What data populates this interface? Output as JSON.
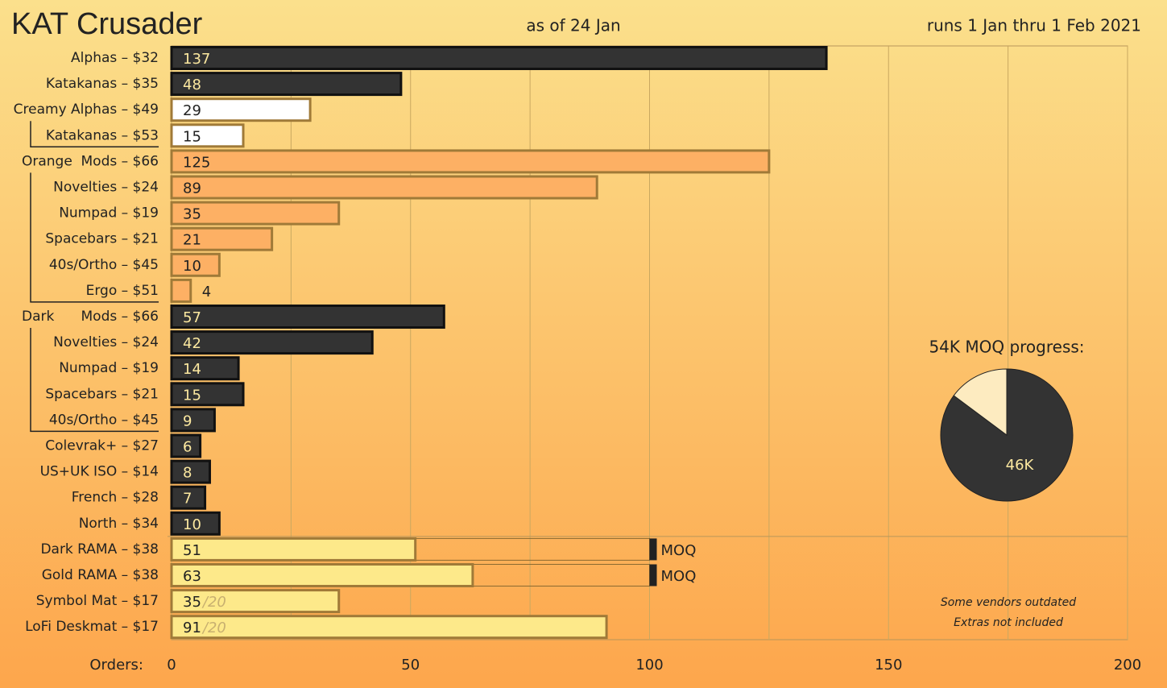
{
  "header": {
    "title": "KAT Crusader",
    "subtitle": "as of 24 Jan",
    "run_dates": "runs 1 Jan thru 1 Feb 2021"
  },
  "chart_data": [
    {
      "type": "bar",
      "orientation": "horizontal",
      "x_label": "Orders:",
      "categories": [
        "Alphas – $32",
        "Katakanas – $35",
        "Creamy Alphas – $49",
        "Katakanas – $53",
        "Mods – $66",
        "Novelties – $24",
        "Numpad – $19",
        "Spacebars – $21",
        "40s/Ortho – $45",
        "Ergo – $51",
        "Mods – $66",
        "Novelties – $24",
        "Numpad – $19",
        "Spacebars – $21",
        "40s/Ortho – $45",
        "Colevrak+ – $27",
        "US+UK ISO – $14",
        "French – $28",
        "North – $34",
        "Dark RAMA – $38",
        "Gold RAMA – $38",
        "Symbol Mat – $17",
        "LoFi Deskmat – $17"
      ],
      "group_labels": [
        null,
        null,
        null,
        null,
        "Orange",
        null,
        null,
        null,
        null,
        null,
        "Dark",
        null,
        null,
        null,
        null,
        null,
        null,
        null,
        null,
        null,
        null,
        null,
        null
      ],
      "values": [
        137,
        48,
        29,
        15,
        125,
        89,
        35,
        21,
        10,
        4,
        57,
        42,
        14,
        15,
        9,
        6,
        8,
        7,
        10,
        51,
        63,
        35,
        91
      ],
      "colors": [
        "#333333",
        "#333333",
        "#ffffff",
        "#ffffff",
        "#fdb064",
        "#fdb064",
        "#fdb064",
        "#fdb064",
        "#fdb064",
        "#fdb064",
        "#333333",
        "#333333",
        "#333333",
        "#333333",
        "#333333",
        "#333333",
        "#333333",
        "#333333",
        "#333333",
        "#fde98a",
        "#fde98a",
        "#fde98a",
        "#fde98a"
      ],
      "suffixes": [
        null,
        null,
        null,
        null,
        null,
        null,
        null,
        null,
        null,
        null,
        null,
        null,
        null,
        null,
        null,
        null,
        null,
        null,
        null,
        null,
        null,
        "/20",
        "/20"
      ],
      "moq": [
        null,
        null,
        null,
        null,
        null,
        null,
        null,
        null,
        null,
        null,
        null,
        null,
        null,
        null,
        null,
        null,
        null,
        null,
        null,
        100,
        100,
        null,
        null
      ],
      "moq_label": "MOQ",
      "xlim": [
        0,
        200
      ],
      "xticks": [
        0,
        50,
        100,
        150,
        200
      ],
      "xminor": [
        25,
        75,
        125,
        175
      ],
      "grid": true,
      "notes": [
        "Some vendors outdated",
        "Extras not included"
      ]
    },
    {
      "type": "pie",
      "title": "54K MOQ progress:",
      "values": [
        46,
        8
      ],
      "value_labels": [
        "46K",
        null
      ],
      "colors": [
        "#333333",
        "#fdebc0"
      ]
    }
  ]
}
